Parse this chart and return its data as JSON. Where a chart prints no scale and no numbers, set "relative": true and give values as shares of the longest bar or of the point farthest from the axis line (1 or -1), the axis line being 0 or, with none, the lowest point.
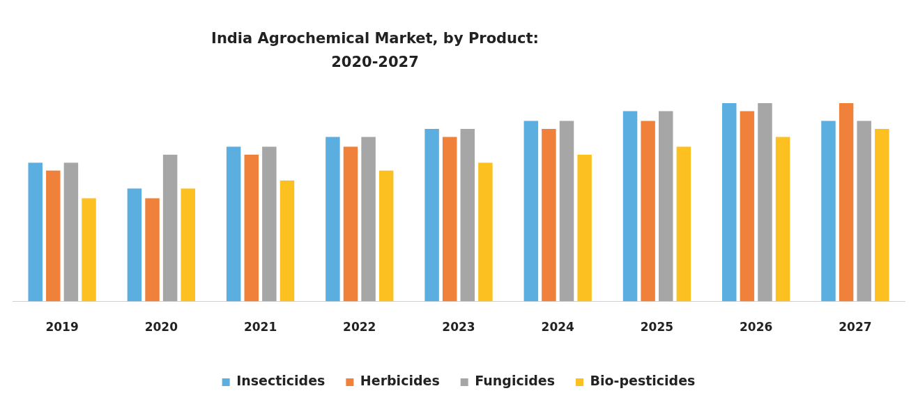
{
  "chart_data": {
    "type": "bar",
    "title": "India Agrochemical Market, by Product: 2020-2027",
    "relative": true,
    "categories": [
      "2019",
      "2020",
      "2021",
      "2022",
      "2023",
      "2024",
      "2025",
      "2026",
      "2027"
    ],
    "series": [
      {
        "name": "Insecticides",
        "color": "#5aaee0",
        "values": [
          0.7,
          0.57,
          0.78,
          0.83,
          0.87,
          0.91,
          0.96,
          1,
          0.91
        ]
      },
      {
        "name": "Herbicides",
        "color": "#f0813a",
        "values": [
          0.66,
          0.52,
          0.74,
          0.78,
          0.83,
          0.87,
          0.91,
          0.96,
          1
        ]
      },
      {
        "name": "Fungicides",
        "color": "#a6a6a6",
        "values": [
          0.7,
          0.74,
          0.78,
          0.83,
          0.87,
          0.91,
          0.96,
          1,
          0.91
        ]
      },
      {
        "name": "Bio-pesticides",
        "color": "#fcc020",
        "values": [
          0.52,
          0.57,
          0.61,
          0.66,
          0.7,
          0.74,
          0.78,
          0.83,
          0.87
        ]
      }
    ],
    "legend": "bottom",
    "grid": false
  }
}
